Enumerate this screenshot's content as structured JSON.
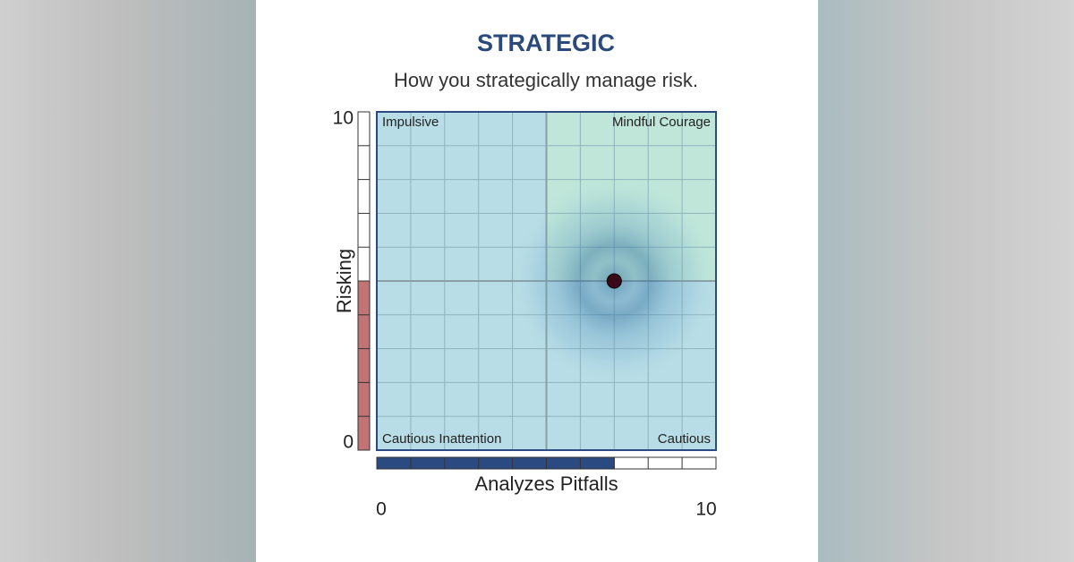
{
  "chart_data": {
    "type": "scatter",
    "title": "STRATEGIC",
    "subtitle": "How you strategically manage risk.",
    "x_label": "Analyzes Pitfalls",
    "y_label": "Risking",
    "x": [
      7
    ],
    "values": [
      5
    ],
    "color": "#3a0a18",
    "y_bar_color": "#c27474",
    "x_bar_color": "#2b4a82",
    "quadrants": [
      "Impulsive",
      "Mindful Courage",
      "Cautious Inattention",
      "Cautious"
    ],
    "xlim": [
      0,
      10
    ],
    "ylim": [
      0,
      10
    ],
    "xticks": [
      0,
      10
    ],
    "yticks": [
      0,
      10
    ],
    "grid": true
  }
}
